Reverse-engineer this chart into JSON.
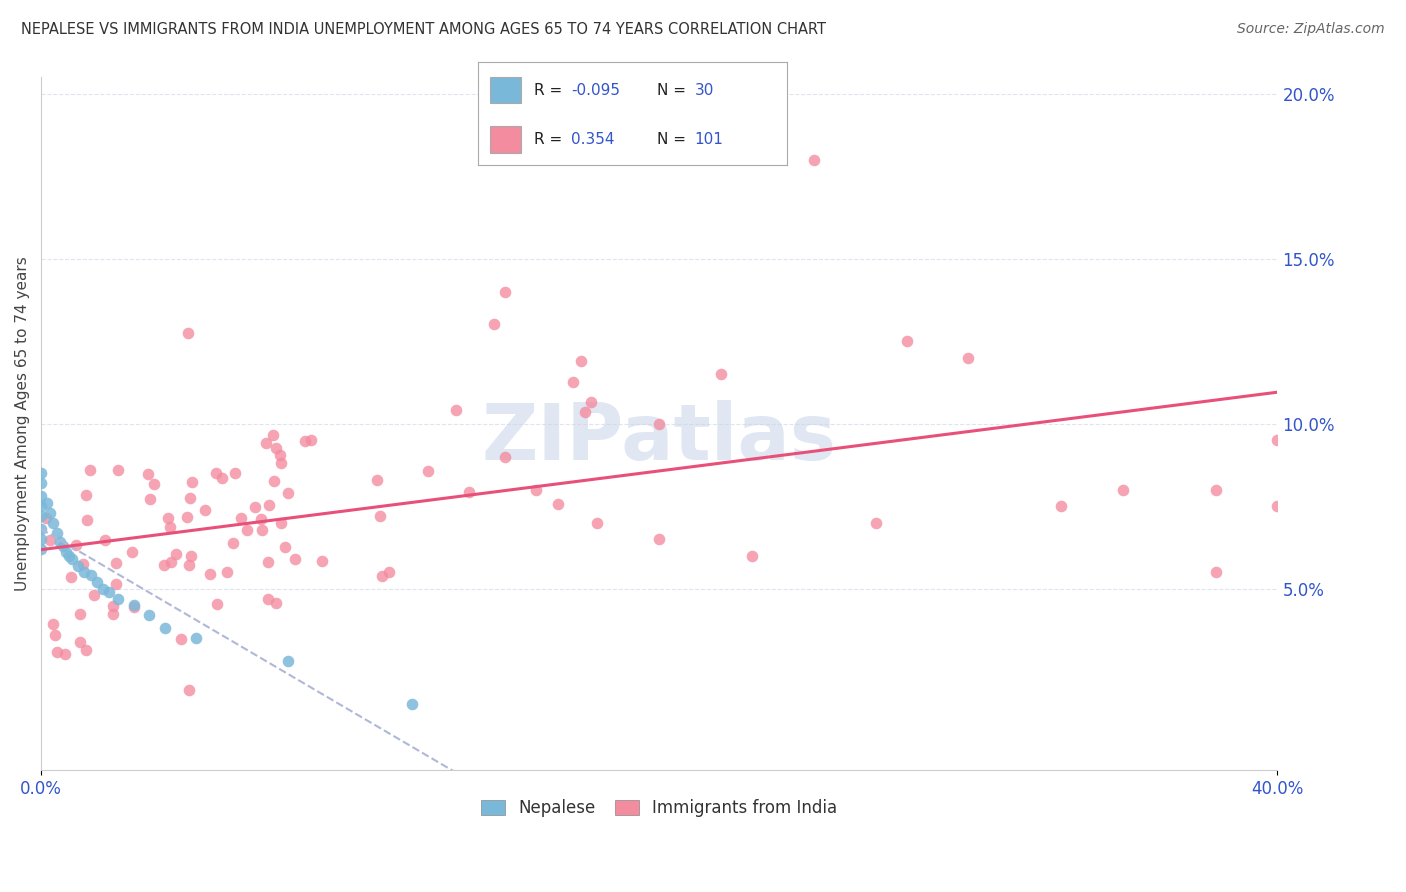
{
  "title": "NEPALESE VS IMMIGRANTS FROM INDIA UNEMPLOYMENT AMONG AGES 65 TO 74 YEARS CORRELATION CHART",
  "source": "Source: ZipAtlas.com",
  "xlim": [
    0.0,
    0.4
  ],
  "ylim": [
    -0.005,
    0.205
  ],
  "ylabel": "Unemployment Among Ages 65 to 74 years",
  "r_nepalese": -0.095,
  "n_nepalese": 30,
  "r_india": 0.354,
  "n_india": 101,
  "nepalese_scatter_color": "#7ab8d9",
  "india_scatter_color": "#f48ca0",
  "nepalese_line_color": "#b0b8d8",
  "india_line_color": "#e8507a",
  "watermark_color": "#c8d4e8",
  "background_color": "#ffffff",
  "grid_color": "#e0e4f0",
  "tick_color": "#3355cc",
  "ytick_right": [
    0.05,
    0.1,
    0.15,
    0.2
  ],
  "ytick_right_labels": [
    "5.0%",
    "10.0%",
    "15.0%",
    "20.0%"
  ],
  "xtick_bottom": [
    0.0,
    0.4
  ],
  "xtick_bottom_labels": [
    "0.0%",
    "40.0%"
  ]
}
